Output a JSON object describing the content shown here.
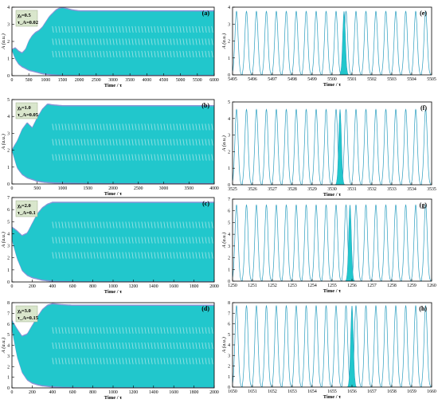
{
  "chart_data": [
    {
      "panel": "(a)",
      "type": "area",
      "xlabel": "Time / τ",
      "ylabel": "A (a.u.)",
      "xlim": [
        0,
        6000
      ],
      "ylim": [
        0,
        4
      ],
      "xticks": [
        0,
        500,
        1000,
        1500,
        2000,
        2500,
        3000,
        3500,
        4000,
        4500,
        5000,
        5500,
        6000
      ],
      "yticks": [
        0,
        1,
        2,
        3,
        4
      ],
      "params": [
        "χ₀=0.5",
        "τ_A=0.02"
      ],
      "envelope": {
        "x": [
          0,
          100,
          200,
          300,
          400,
          500,
          600,
          700,
          800,
          900,
          1000,
          1100,
          1200,
          1300,
          1400,
          1500,
          1600,
          1800,
          2000,
          3000,
          4000,
          5000,
          6000
        ],
        "upper": [
          1.5,
          1.6,
          1.4,
          1.3,
          1.5,
          2.0,
          2.3,
          2.5,
          2.6,
          2.8,
          3.1,
          3.4,
          3.6,
          3.8,
          3.9,
          3.95,
          3.9,
          3.8,
          3.75,
          3.75,
          3.75,
          3.75,
          3.75
        ],
        "lower": [
          1.5,
          1.0,
          0.7,
          0.55,
          0.45,
          0.35,
          0.3,
          0.25,
          0.2,
          0.15,
          0.12,
          0.1,
          0.08,
          0.07,
          0.05,
          0.05,
          0.04,
          0.04,
          0.04,
          0.04,
          0.04,
          0.04,
          0.04
        ]
      }
    },
    {
      "panel": "(b)",
      "type": "area",
      "xlabel": "Time / τ",
      "ylabel": "A (a.u.)",
      "xlim": [
        0,
        4000
      ],
      "ylim": [
        0,
        5
      ],
      "xticks": [
        0,
        500,
        1000,
        1500,
        2000,
        2500,
        3000,
        3500,
        4000
      ],
      "yticks": [
        0,
        1,
        2,
        3,
        4,
        5
      ],
      "params": [
        "χ₀=1.0",
        "τ_A=0.05"
      ],
      "envelope": {
        "x": [
          0,
          100,
          200,
          300,
          400,
          500,
          600,
          700,
          800,
          1000,
          1500,
          2000,
          3000,
          4000
        ],
        "upper": [
          2.0,
          2.5,
          3.2,
          3.6,
          3.3,
          3.9,
          4.4,
          4.7,
          4.65,
          4.6,
          4.6,
          4.6,
          4.6,
          4.6
        ],
        "lower": [
          2.0,
          1.0,
          0.6,
          0.4,
          0.3,
          0.2,
          0.15,
          0.12,
          0.1,
          0.08,
          0.06,
          0.05,
          0.05,
          0.05
        ]
      }
    },
    {
      "panel": "(c)",
      "type": "area",
      "xlabel": "Time / τ",
      "ylabel": "A (a.u.)",
      "xlim": [
        0,
        2000
      ],
      "ylim": [
        0,
        7
      ],
      "xticks": [
        0,
        200,
        400,
        600,
        800,
        1000,
        1200,
        1400,
        1600,
        1800,
        2000
      ],
      "yticks": [
        0,
        1,
        2,
        3,
        4,
        5,
        6,
        7
      ],
      "params": [
        "χ₀=2.0",
        "τ_A=0.1"
      ],
      "envelope": {
        "x": [
          0,
          50,
          100,
          150,
          200,
          250,
          300,
          350,
          400,
          500,
          600,
          800,
          1000,
          1500,
          2000
        ],
        "upper": [
          4.5,
          4.2,
          3.8,
          4.0,
          4.8,
          5.6,
          6.1,
          6.4,
          6.55,
          6.55,
          6.55,
          6.55,
          6.55,
          6.55,
          6.55
        ],
        "lower": [
          3.5,
          2.0,
          1.0,
          0.6,
          0.4,
          0.3,
          0.2,
          0.15,
          0.1,
          0.08,
          0.06,
          0.05,
          0.05,
          0.05,
          0.05
        ]
      }
    },
    {
      "panel": "(d)",
      "type": "area",
      "xlabel": "Time / τ",
      "ylabel": "A (a.u.)",
      "xlim": [
        0,
        2000
      ],
      "ylim": [
        0,
        8
      ],
      "xticks": [
        0,
        200,
        400,
        600,
        800,
        1000,
        1200,
        1400,
        1600,
        1800,
        2000
      ],
      "yticks": [
        0,
        1,
        2,
        3,
        4,
        5,
        6,
        7,
        8
      ],
      "params": [
        "χ₀=3.0",
        "τ_A=0.15"
      ],
      "envelope": {
        "x": [
          0,
          50,
          100,
          150,
          200,
          250,
          300,
          350,
          400,
          500,
          600,
          800,
          1000,
          1500,
          2000
        ],
        "upper": [
          6.3,
          5.5,
          4.8,
          5.0,
          5.8,
          6.6,
          7.3,
          7.7,
          7.85,
          7.75,
          7.7,
          7.7,
          7.7,
          7.7,
          7.7
        ],
        "lower": [
          5.5,
          3.0,
          1.5,
          0.8,
          0.5,
          0.35,
          0.25,
          0.2,
          0.15,
          0.1,
          0.08,
          0.06,
          0.05,
          0.05,
          0.05
        ]
      }
    },
    {
      "panel": "(e)",
      "type": "line",
      "xlabel": "Time / τ",
      "ylabel": "A (a.u.)",
      "xlim": [
        5495,
        5505
      ],
      "ylim": [
        0,
        4
      ],
      "xticks": [
        5495,
        5496,
        5497,
        5498,
        5499,
        5500,
        5501,
        5502,
        5503,
        5504,
        5505
      ],
      "yticks": [
        0,
        1,
        2,
        3,
        4
      ],
      "pulse_peak": 3.75,
      "pulses_per_unit": 2,
      "highlight_x": 5500.6
    },
    {
      "panel": "(f)",
      "type": "line",
      "xlabel": "Time / τ",
      "ylabel": "A (a.u.)",
      "xlim": [
        3525,
        3535
      ],
      "ylim": [
        0,
        5
      ],
      "xticks": [
        3525,
        3526,
        3527,
        3528,
        3529,
        3530,
        3531,
        3532,
        3533,
        3534,
        3535
      ],
      "yticks": [
        0,
        1,
        2,
        3,
        4,
        5
      ],
      "pulse_peak": 4.55,
      "pulses_per_unit": 2,
      "highlight_x": 3530.4
    },
    {
      "panel": "(g)",
      "type": "line",
      "xlabel": "Time / τ",
      "ylabel": "A (a.u.)",
      "xlim": [
        1250,
        1260
      ],
      "ylim": [
        0,
        7
      ],
      "xticks": [
        1250,
        1251,
        1252,
        1253,
        1254,
        1255,
        1256,
        1257,
        1258,
        1259,
        1260
      ],
      "yticks": [
        0,
        1,
        2,
        3,
        4,
        5,
        6,
        7
      ],
      "pulse_peak": 6.5,
      "pulses_per_unit": 2,
      "highlight_x": 1255.9
    },
    {
      "panel": "(h)",
      "type": "line",
      "xlabel": "Time / τ",
      "ylabel": "A (a.u.)",
      "xlim": [
        1650,
        1660
      ],
      "ylim": [
        0,
        8
      ],
      "xticks": [
        1650,
        1651,
        1652,
        1653,
        1654,
        1655,
        1656,
        1657,
        1658,
        1659,
        1660
      ],
      "yticks": [
        0,
        1,
        2,
        3,
        4,
        5,
        6,
        7,
        8
      ],
      "pulse_peak": 7.7,
      "pulses_per_unit": 2,
      "highlight_x": 1656.0
    }
  ],
  "colors": {
    "fill": "#21c7cc",
    "envelope": "#8a93d6",
    "line": "#2a9ec0",
    "axis": "#000000",
    "param_box": "#d9e6cc"
  }
}
